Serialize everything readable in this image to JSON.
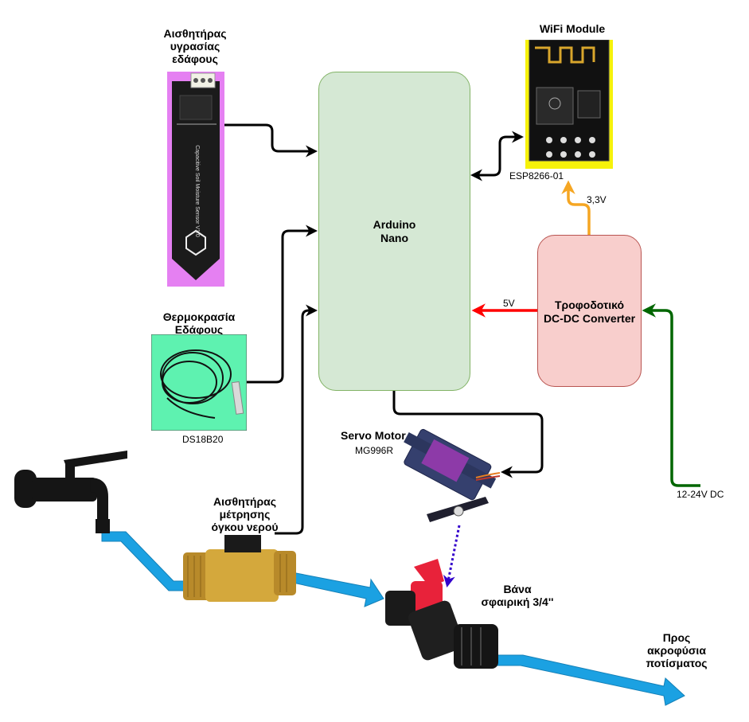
{
  "soil_sensor": {
    "label_line1": "Αισθητήρας",
    "label_line2": "υγρασίας",
    "label_line3": "εδάφους",
    "board_text": "Capacitive Soil Moisture Sensor V1.0"
  },
  "temp_sensor": {
    "label_line1": "Θερμοκρασία",
    "label_line2": "Εδάφους",
    "part": "DS18B20"
  },
  "arduino": {
    "line1": "Arduino",
    "line2": "Nano"
  },
  "wifi": {
    "title": "WiFi Module",
    "part": "ESP8266-01",
    "voltage": "3,3V"
  },
  "power": {
    "line1": "Τροφοδοτικό",
    "line2": "DC-DC Converter",
    "out_voltage": "5V",
    "in_voltage": "12-24V DC"
  },
  "servo": {
    "title": "Servo Motor",
    "part": "MG996R"
  },
  "flow_sensor": {
    "line1": "Αισθητήρας",
    "line2": "μέτρησης",
    "line3": "όγκου νερού"
  },
  "valve": {
    "line1": "Βάνα",
    "line2": "σφαιρική 3/4''"
  },
  "output": {
    "line1": "Προς",
    "line2": "ακροφύσια",
    "line3": "ποτίσματος"
  },
  "colors": {
    "arduino_fill": "#d5e8d4",
    "power_fill": "#f8cecc",
    "water": "#1ba1e2",
    "wire_5v": "#ff0000",
    "wire_3v3": "#f5a623",
    "wire_dc_in": "#006600",
    "servo_link": "#3300cc",
    "wire": "#000000"
  }
}
